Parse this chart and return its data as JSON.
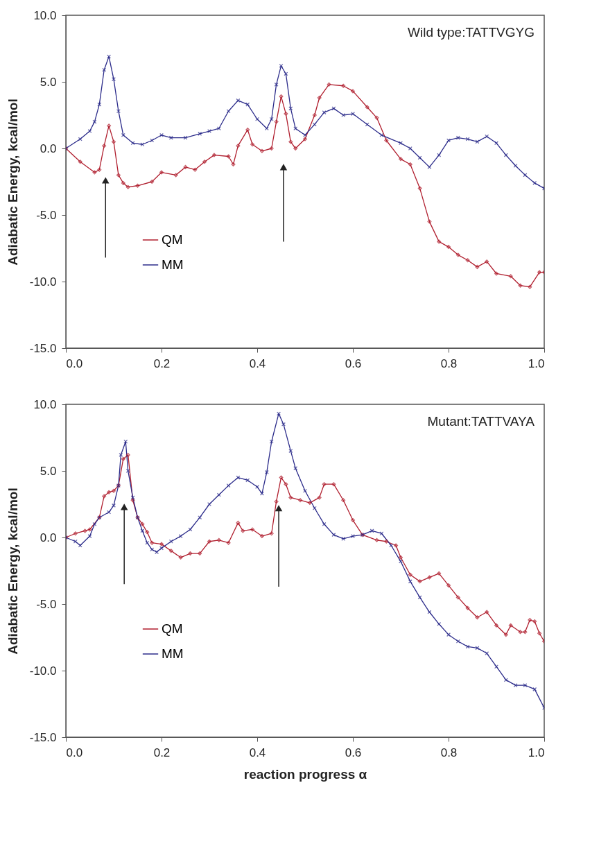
{
  "chart_data": [
    {
      "type": "line",
      "ylabel": "Adiabatic Energy, kcal/mol",
      "annotations": [
        "Wild type:TATTVGYG"
      ],
      "legend": "bottom left",
      "grid": false,
      "xlim": [
        0,
        1
      ],
      "xticks": [
        {
          "value": 0,
          "label": "0.0"
        },
        {
          "value": 0.2,
          "label": "0.2"
        },
        {
          "value": 0.4,
          "label": "0.4"
        },
        {
          "value": 0.6,
          "label": "0.6"
        },
        {
          "value": 0.8,
          "label": "0.8"
        },
        {
          "value": 1,
          "label": "1.0"
        }
      ],
      "ylim": [
        -15,
        10
      ],
      "yticks": [
        {
          "value": -15,
          "label": "-15.0"
        },
        {
          "value": -10,
          "label": "-10.0"
        },
        {
          "value": -5,
          "label": "-5.0"
        },
        {
          "value": 0,
          "label": "0.0"
        },
        {
          "value": 5,
          "label": "5.0"
        },
        {
          "value": 10,
          "label": "10.0"
        }
      ],
      "series": [
        {
          "name": "QM",
          "color": "#b01e2e",
          "marker": "diamond",
          "line_style": "solid",
          "x": [
            0,
            0.03,
            0.06,
            0.07,
            0.08,
            0.09,
            0.1,
            0.11,
            0.12,
            0.13,
            0.15,
            0.18,
            0.2,
            0.23,
            0.25,
            0.27,
            0.29,
            0.31,
            0.34,
            0.35,
            0.36,
            0.38,
            0.39,
            0.41,
            0.43,
            0.44,
            0.45,
            0.46,
            0.47,
            0.48,
            0.5,
            0.52,
            0.53,
            0.55,
            0.58,
            0.6,
            0.63,
            0.65,
            0.67,
            0.7,
            0.72,
            0.74,
            0.76,
            0.78,
            0.8,
            0.82,
            0.84,
            0.86,
            0.88,
            0.9,
            0.93,
            0.95,
            0.97,
            0.99,
            1.0
          ],
          "values": [
            0,
            -1.0,
            -1.8,
            -1.6,
            0.2,
            1.7,
            0.5,
            -2.0,
            -2.6,
            -2.9,
            -2.8,
            -2.5,
            -1.8,
            -2.0,
            -1.4,
            -1.6,
            -1.0,
            -0.5,
            -0.6,
            -1.2,
            0.2,
            1.4,
            0.3,
            -0.2,
            0.0,
            2.0,
            3.9,
            2.6,
            0.5,
            0.0,
            0.7,
            2.5,
            3.8,
            4.8,
            4.7,
            4.3,
            3.1,
            2.3,
            0.6,
            -0.8,
            -1.2,
            -3.0,
            -5.5,
            -7.0,
            -7.4,
            -8.0,
            -8.4,
            -8.9,
            -8.5,
            -9.4,
            -9.6,
            -10.3,
            -10.4,
            -9.3,
            -9.3
          ]
        },
        {
          "name": "MM",
          "color": "#2b2b8a",
          "marker": "cross",
          "line_style": "solid",
          "x": [
            0,
            0.03,
            0.05,
            0.06,
            0.07,
            0.08,
            0.09,
            0.1,
            0.11,
            0.12,
            0.14,
            0.16,
            0.18,
            0.2,
            0.22,
            0.25,
            0.28,
            0.3,
            0.32,
            0.34,
            0.36,
            0.38,
            0.4,
            0.42,
            0.43,
            0.44,
            0.45,
            0.46,
            0.47,
            0.48,
            0.5,
            0.52,
            0.54,
            0.56,
            0.58,
            0.6,
            0.63,
            0.66,
            0.7,
            0.72,
            0.74,
            0.76,
            0.78,
            0.8,
            0.82,
            0.84,
            0.86,
            0.88,
            0.9,
            0.92,
            0.94,
            0.96,
            0.98,
            1.0
          ],
          "values": [
            0,
            0.7,
            1.3,
            2.0,
            3.3,
            5.9,
            6.9,
            5.2,
            2.8,
            1.0,
            0.4,
            0.3,
            0.6,
            1.0,
            0.8,
            0.8,
            1.1,
            1.3,
            1.5,
            2.8,
            3.6,
            3.3,
            2.2,
            1.5,
            2.2,
            4.8,
            6.2,
            5.6,
            3.0,
            1.5,
            1.0,
            1.8,
            2.7,
            3.0,
            2.5,
            2.6,
            1.8,
            1.0,
            0.4,
            0.0,
            -0.7,
            -1.4,
            -0.5,
            0.6,
            0.8,
            0.7,
            0.5,
            0.9,
            0.4,
            -0.5,
            -1.3,
            -2.0,
            -2.6,
            -3.0
          ]
        }
      ]
    },
    {
      "type": "line",
      "xlabel": "reaction progress α",
      "ylabel": "Adiabatic Energy, kcal/mol",
      "annotations": [
        "Mutant:TATTVAYA"
      ],
      "legend": "bottom left",
      "grid": false,
      "xlim": [
        0,
        1
      ],
      "xticks": [
        {
          "value": 0,
          "label": "0.0"
        },
        {
          "value": 0.2,
          "label": "0.2"
        },
        {
          "value": 0.4,
          "label": "0.4"
        },
        {
          "value": 0.6,
          "label": "0.6"
        },
        {
          "value": 0.8,
          "label": "0.8"
        },
        {
          "value": 1,
          "label": "1.0"
        }
      ],
      "ylim": [
        -15,
        10
      ],
      "yticks": [
        {
          "value": -15,
          "label": "-15.0"
        },
        {
          "value": -10,
          "label": "-10.0"
        },
        {
          "value": -5,
          "label": "-5.0"
        },
        {
          "value": 0,
          "label": "0.0"
        },
        {
          "value": 5,
          "label": "5.0"
        },
        {
          "value": 10,
          "label": "10.0"
        }
      ],
      "series": [
        {
          "name": "QM",
          "color": "#b01e2e",
          "marker": "diamond",
          "line_style": "solid",
          "x": [
            0,
            0.02,
            0.04,
            0.05,
            0.07,
            0.08,
            0.09,
            0.1,
            0.11,
            0.12,
            0.13,
            0.14,
            0.15,
            0.16,
            0.17,
            0.18,
            0.2,
            0.22,
            0.24,
            0.26,
            0.28,
            0.3,
            0.32,
            0.34,
            0.36,
            0.37,
            0.39,
            0.41,
            0.43,
            0.44,
            0.45,
            0.46,
            0.47,
            0.49,
            0.51,
            0.53,
            0.54,
            0.56,
            0.58,
            0.6,
            0.62,
            0.65,
            0.67,
            0.69,
            0.7,
            0.72,
            0.74,
            0.76,
            0.78,
            0.8,
            0.82,
            0.84,
            0.86,
            0.88,
            0.9,
            0.92,
            0.93,
            0.95,
            0.96,
            0.97,
            0.98,
            0.99,
            1.0
          ],
          "values": [
            0,
            0.3,
            0.5,
            0.6,
            1.5,
            3.1,
            3.4,
            3.5,
            3.9,
            5.9,
            6.2,
            2.8,
            1.5,
            1.0,
            0.4,
            -0.4,
            -0.5,
            -1.0,
            -1.5,
            -1.2,
            -1.2,
            -0.3,
            -0.2,
            -0.4,
            1.1,
            0.5,
            0.6,
            0.1,
            0.3,
            2.7,
            4.5,
            4.0,
            3.0,
            2.8,
            2.6,
            3.0,
            4.0,
            4.0,
            2.8,
            1.3,
            0.2,
            -0.2,
            -0.3,
            -0.6,
            -1.5,
            -2.8,
            -3.3,
            -3.0,
            -2.7,
            -3.6,
            -4.5,
            -5.3,
            -6.0,
            -5.6,
            -6.6,
            -7.3,
            -6.6,
            -7.1,
            -7.1,
            -6.2,
            -6.3,
            -7.2,
            -7.8
          ]
        },
        {
          "name": "MM",
          "color": "#2b2b8a",
          "marker": "cross",
          "line_style": "solid",
          "x": [
            0,
            0.02,
            0.03,
            0.05,
            0.06,
            0.07,
            0.09,
            0.1,
            0.11,
            0.115,
            0.125,
            0.13,
            0.14,
            0.15,
            0.16,
            0.17,
            0.18,
            0.19,
            0.2,
            0.22,
            0.24,
            0.26,
            0.28,
            0.3,
            0.32,
            0.34,
            0.36,
            0.38,
            0.4,
            0.41,
            0.42,
            0.43,
            0.445,
            0.455,
            0.47,
            0.48,
            0.5,
            0.52,
            0.54,
            0.56,
            0.58,
            0.6,
            0.62,
            0.64,
            0.66,
            0.68,
            0.7,
            0.72,
            0.74,
            0.76,
            0.78,
            0.8,
            0.82,
            0.84,
            0.86,
            0.88,
            0.9,
            0.92,
            0.94,
            0.96,
            0.98,
            1.0
          ],
          "values": [
            0,
            -0.3,
            -0.6,
            0.1,
            1.0,
            1.5,
            1.9,
            2.4,
            3.9,
            6.2,
            7.2,
            5.0,
            3.0,
            1.5,
            0.5,
            -0.4,
            -0.9,
            -1.1,
            -0.8,
            -0.3,
            0.1,
            0.6,
            1.5,
            2.5,
            3.2,
            3.9,
            4.5,
            4.3,
            3.8,
            3.3,
            4.9,
            7.2,
            9.3,
            8.5,
            6.5,
            5.2,
            3.5,
            2.2,
            1.0,
            0.2,
            -0.1,
            0.1,
            0.2,
            0.5,
            0.3,
            -0.6,
            -1.8,
            -3.3,
            -4.5,
            -5.6,
            -6.5,
            -7.3,
            -7.8,
            -8.2,
            -8.3,
            -8.7,
            -9.7,
            -10.7,
            -11.1,
            -11.1,
            -11.4,
            -12.8
          ]
        }
      ]
    }
  ]
}
